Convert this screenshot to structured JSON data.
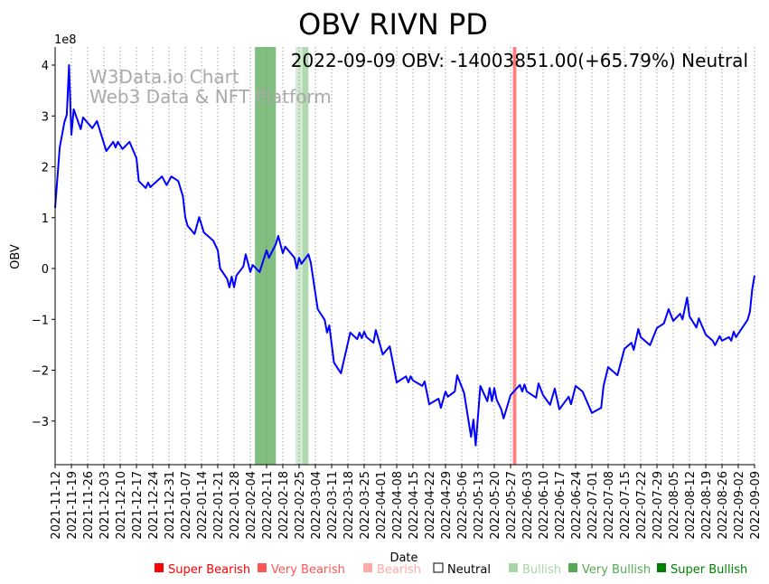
{
  "chart_data": {
    "type": "line",
    "title": "OBV RIVN PD",
    "subtitle": "2022-09-09 OBV: -14003851.00(+65.79%) Neutral",
    "watermark": [
      "W3Data.io Chart",
      "Web3 Data & NFT Platform"
    ],
    "xlabel": "Date",
    "ylabel": "OBV",
    "y_scale_label": "1e8",
    "y_multiplier": 100000000,
    "ylim": [
      -3.8,
      4.35
    ],
    "yticks": [
      -3,
      -2,
      -1,
      0,
      1,
      2,
      3,
      4
    ],
    "ytick_labels": [
      "−3",
      "−2",
      "−1",
      "0",
      "1",
      "2",
      "3",
      "4"
    ],
    "start_date": "2021-11-12",
    "xlim_days": [
      0,
      301
    ],
    "xtick_days_step": 7,
    "xtick_labels": [
      "2021-11-12",
      "2021-11-19",
      "2021-11-26",
      "2021-12-03",
      "2021-12-10",
      "2021-12-17",
      "2021-12-24",
      "2021-12-31",
      "2022-01-07",
      "2022-01-14",
      "2022-01-21",
      "2022-01-28",
      "2022-02-04",
      "2022-02-11",
      "2022-02-18",
      "2022-02-25",
      "2022-03-04",
      "2022-03-11",
      "2022-03-18",
      "2022-03-25",
      "2022-04-01",
      "2022-04-08",
      "2022-04-15",
      "2022-04-22",
      "2022-04-29",
      "2022-05-06",
      "2022-05-13",
      "2022-05-20",
      "2022-05-27",
      "2022-06-03",
      "2022-06-10",
      "2022-06-17",
      "2022-06-24",
      "2022-07-01",
      "2022-07-08",
      "2022-07-15",
      "2022-07-22",
      "2022-07-29",
      "2022-08-05",
      "2022-08-12",
      "2022-08-19",
      "2022-08-26",
      "2022-09-02",
      "2022-09-09"
    ],
    "grid": "vertical dotted",
    "series": [
      {
        "name": "OBV",
        "color": "#0000ff",
        "points_day_value": [
          [
            0,
            1.19
          ],
          [
            2,
            2.38
          ],
          [
            4,
            2.88
          ],
          [
            5,
            3.02
          ],
          [
            6,
            4.0
          ],
          [
            7,
            2.63
          ],
          [
            8,
            3.13
          ],
          [
            11,
            2.74
          ],
          [
            12,
            2.97
          ],
          [
            16,
            2.76
          ],
          [
            18,
            2.9
          ],
          [
            20,
            2.61
          ],
          [
            22,
            2.31
          ],
          [
            25,
            2.49
          ],
          [
            26,
            2.38
          ],
          [
            27,
            2.49
          ],
          [
            29,
            2.35
          ],
          [
            32,
            2.49
          ],
          [
            35,
            2.17
          ],
          [
            36,
            1.72
          ],
          [
            39,
            1.58
          ],
          [
            40,
            1.69
          ],
          [
            41,
            1.6
          ],
          [
            46,
            1.81
          ],
          [
            48,
            1.64
          ],
          [
            50,
            1.81
          ],
          [
            53,
            1.72
          ],
          [
            55,
            1.42
          ],
          [
            56,
            1.01
          ],
          [
            57,
            0.84
          ],
          [
            60,
            0.68
          ],
          [
            62,
            1.01
          ],
          [
            64,
            0.71
          ],
          [
            68,
            0.55
          ],
          [
            70,
            0.36
          ],
          [
            71,
            0.0
          ],
          [
            74,
            -0.2
          ],
          [
            75,
            -0.37
          ],
          [
            76,
            -0.16
          ],
          [
            77,
            -0.37
          ],
          [
            78,
            -0.14
          ],
          [
            81,
            0.04
          ],
          [
            82,
            0.28
          ],
          [
            84,
            -0.07
          ],
          [
            85,
            0.07
          ],
          [
            88,
            -0.07
          ],
          [
            91,
            0.36
          ],
          [
            92,
            0.21
          ],
          [
            95,
            0.48
          ],
          [
            96,
            0.64
          ],
          [
            98,
            0.3
          ],
          [
            99,
            0.43
          ],
          [
            103,
            0.21
          ],
          [
            104,
            0.0
          ],
          [
            105,
            0.21
          ],
          [
            106,
            0.09
          ],
          [
            109,
            0.28
          ],
          [
            110,
            0.12
          ],
          [
            113,
            -0.8
          ],
          [
            116,
            -1.01
          ],
          [
            117,
            -1.26
          ],
          [
            118,
            -1.12
          ],
          [
            120,
            -1.85
          ],
          [
            123,
            -2.06
          ],
          [
            127,
            -1.26
          ],
          [
            130,
            -1.39
          ],
          [
            131,
            -1.26
          ],
          [
            132,
            -1.37
          ],
          [
            133,
            -1.24
          ],
          [
            134,
            -1.35
          ],
          [
            137,
            -1.46
          ],
          [
            138,
            -1.21
          ],
          [
            141,
            -1.69
          ],
          [
            144,
            -1.53
          ],
          [
            147,
            -2.24
          ],
          [
            151,
            -2.12
          ],
          [
            152,
            -2.24
          ],
          [
            153,
            -2.12
          ],
          [
            154,
            -2.2
          ],
          [
            158,
            -2.31
          ],
          [
            159,
            -2.22
          ],
          [
            161,
            -2.67
          ],
          [
            165,
            -2.56
          ],
          [
            166,
            -2.74
          ],
          [
            168,
            -2.42
          ],
          [
            169,
            -2.52
          ],
          [
            172,
            -2.42
          ],
          [
            173,
            -2.1
          ],
          [
            176,
            -2.45
          ],
          [
            179,
            -3.31
          ],
          [
            180,
            -2.97
          ],
          [
            181,
            -3.48
          ],
          [
            183,
            -2.31
          ],
          [
            186,
            -2.61
          ],
          [
            187,
            -2.35
          ],
          [
            188,
            -2.61
          ],
          [
            189,
            -2.35
          ],
          [
            190,
            -2.58
          ],
          [
            192,
            -2.77
          ],
          [
            193,
            -2.95
          ],
          [
            196,
            -2.49
          ],
          [
            200,
            -2.29
          ],
          [
            201,
            -2.42
          ],
          [
            202,
            -2.28
          ],
          [
            203,
            -2.42
          ],
          [
            207,
            -2.54
          ],
          [
            208,
            -2.26
          ],
          [
            210,
            -2.49
          ],
          [
            213,
            -2.68
          ],
          [
            215,
            -2.36
          ],
          [
            217,
            -2.77
          ],
          [
            221,
            -2.52
          ],
          [
            222,
            -2.67
          ],
          [
            224,
            -2.31
          ],
          [
            227,
            -2.42
          ],
          [
            231,
            -2.84
          ],
          [
            235,
            -2.74
          ],
          [
            236,
            -2.31
          ],
          [
            238,
            -1.94
          ],
          [
            242,
            -2.1
          ],
          [
            245,
            -1.58
          ],
          [
            248,
            -1.46
          ],
          [
            249,
            -1.6
          ],
          [
            251,
            -1.19
          ],
          [
            252,
            -1.35
          ],
          [
            256,
            -1.51
          ],
          [
            259,
            -1.17
          ],
          [
            262,
            -1.08
          ],
          [
            264,
            -0.8
          ],
          [
            266,
            -1.03
          ],
          [
            269,
            -0.89
          ],
          [
            270,
            -1.0
          ],
          [
            272,
            -0.57
          ],
          [
            273,
            -0.94
          ],
          [
            276,
            -1.16
          ],
          [
            277,
            -0.98
          ],
          [
            280,
            -1.3
          ],
          [
            283,
            -1.42
          ],
          [
            284,
            -1.51
          ],
          [
            286,
            -1.33
          ],
          [
            287,
            -1.42
          ],
          [
            290,
            -1.35
          ],
          [
            291,
            -1.42
          ],
          [
            292,
            -1.24
          ],
          [
            293,
            -1.35
          ],
          [
            298,
            -1.01
          ],
          [
            299,
            -0.85
          ],
          [
            300,
            -0.41
          ],
          [
            301,
            -0.14003851
          ]
        ]
      }
    ],
    "signal_bands": [
      {
        "start_day": 86,
        "end_day": 95,
        "signal": "Very Bullish",
        "color": "#80bf80"
      },
      {
        "start_day": 103.5,
        "end_day": 109,
        "signal": "Bullish",
        "color": "#d2ead2"
      },
      {
        "start_day": 106.5,
        "end_day": 109,
        "signal": "Bullish",
        "color": "#b0d9b0"
      },
      {
        "start_day": 197,
        "end_day": 198.5,
        "signal": "Very Bearish",
        "color": "#ff7f7f"
      }
    ],
    "legend": {
      "placement": "bottom",
      "items": [
        {
          "label": "Super Bearish",
          "color": "#ff0000",
          "text_color": "#ff0000"
        },
        {
          "label": "Very Bearish",
          "color": "#ff5555",
          "text_color": "#ff5555"
        },
        {
          "label": "Bearish",
          "color": "#ffaaaa",
          "text_color": "#ffaaaa"
        },
        {
          "label": "Neutral",
          "color": "none",
          "text_color": "#000000"
        },
        {
          "label": "Bullish",
          "color": "#aad4aa",
          "text_color": "#aad4aa"
        },
        {
          "label": "Very Bullish",
          "color": "#55aa55",
          "text_color": "#55aa55"
        },
        {
          "label": "Super Bullish",
          "color": "#008000",
          "text_color": "#008000"
        }
      ]
    }
  }
}
